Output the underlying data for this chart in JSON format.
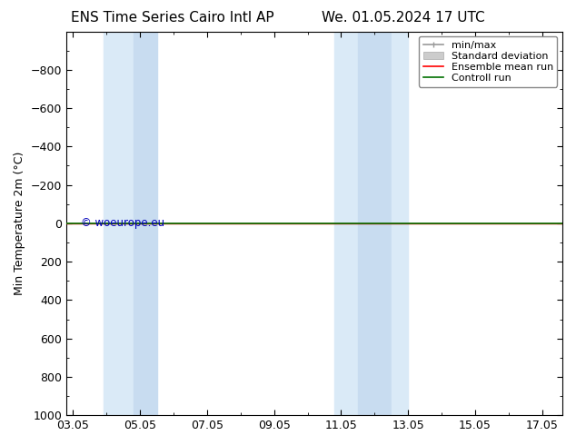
{
  "title_left": "ENS Time Series Cairo Intl AP",
  "title_right": "We. 01.05.2024 17 UTC",
  "ylabel": "Min Temperature 2m (°C)",
  "ylim_top": -1000,
  "ylim_bottom": 1000,
  "yticks": [
    -800,
    -600,
    -400,
    -200,
    0,
    200,
    400,
    600,
    800,
    1000
  ],
  "xtick_labels": [
    "03.05",
    "05.05",
    "07.05",
    "09.05",
    "11.05",
    "13.05",
    "15.05",
    "17.05"
  ],
  "xtick_positions": [
    3,
    5,
    7,
    9,
    11,
    13,
    15,
    17
  ],
  "xmin": 2.8,
  "xmax": 17.6,
  "shaded_regions": [
    {
      "xmin": 3.9,
      "xmax": 4.8,
      "color": "#daeaf7"
    },
    {
      "xmin": 4.8,
      "xmax": 5.5,
      "color": "#c8dcf0"
    },
    {
      "xmin": 10.8,
      "xmax": 11.5,
      "color": "#daeaf7"
    },
    {
      "xmin": 11.5,
      "xmax": 12.5,
      "color": "#c8dcf0"
    },
    {
      "xmin": 12.5,
      "xmax": 13.0,
      "color": "#daeaf7"
    }
  ],
  "green_line_y": 0,
  "red_line_y": 0,
  "background_color": "#ffffff",
  "plot_bg_color": "#ffffff",
  "legend_items": [
    "min/max",
    "Standard deviation",
    "Ensemble mean run",
    "Controll run"
  ],
  "legend_colors_line": [
    "#999999",
    "#cccccc",
    "#ff0000",
    "#007000"
  ],
  "watermark": "© woeurope.eu",
  "watermark_color": "#0000bb",
  "title_fontsize": 11,
  "axis_fontsize": 9,
  "tick_fontsize": 9,
  "legend_fontsize": 8
}
